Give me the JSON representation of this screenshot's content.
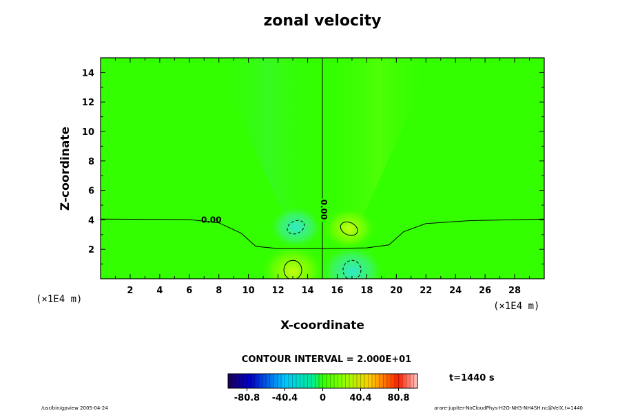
{
  "chart_data": {
    "type": "heatmap",
    "title": "zonal velocity",
    "xlabel": "X-coordinate",
    "ylabel": "Z-coordinate",
    "x_unit": "(×1E4 m)",
    "y_unit": "(×1E4 m)",
    "xlim": [
      0,
      30
    ],
    "ylim": [
      0,
      15
    ],
    "x_ticks": [
      2,
      4,
      6,
      8,
      10,
      12,
      14,
      16,
      18,
      20,
      22,
      24,
      26,
      28
    ],
    "y_ticks": [
      2,
      4,
      6,
      8,
      10,
      12,
      14
    ],
    "contour_interval_label": "CONTOUR INTERVAL = 2.000E+01",
    "contour_labels": [
      "0.00",
      "0.00"
    ],
    "colorbar": {
      "tick_labels": [
        "-80.8",
        "-40.4",
        "0",
        "40.4",
        "80.8"
      ],
      "min": -101,
      "max": 101
    },
    "features": [
      {
        "x": 13.2,
        "z": 3.5,
        "sign": "negative"
      },
      {
        "x": 16.8,
        "z": 3.4,
        "sign": "positive"
      },
      {
        "x": 13.0,
        "z": 0.5,
        "sign": "positive"
      },
      {
        "x": 17.0,
        "z": 0.5,
        "sign": "negative"
      }
    ]
  },
  "time_label": "t=1440 s",
  "footer_left": "/usr/bin/gpview 2005-04-24",
  "footer_right": "arare-jupiter-NoCloudPhys-H2O-NH3-NH4SH.nc@VelX,t=1440"
}
